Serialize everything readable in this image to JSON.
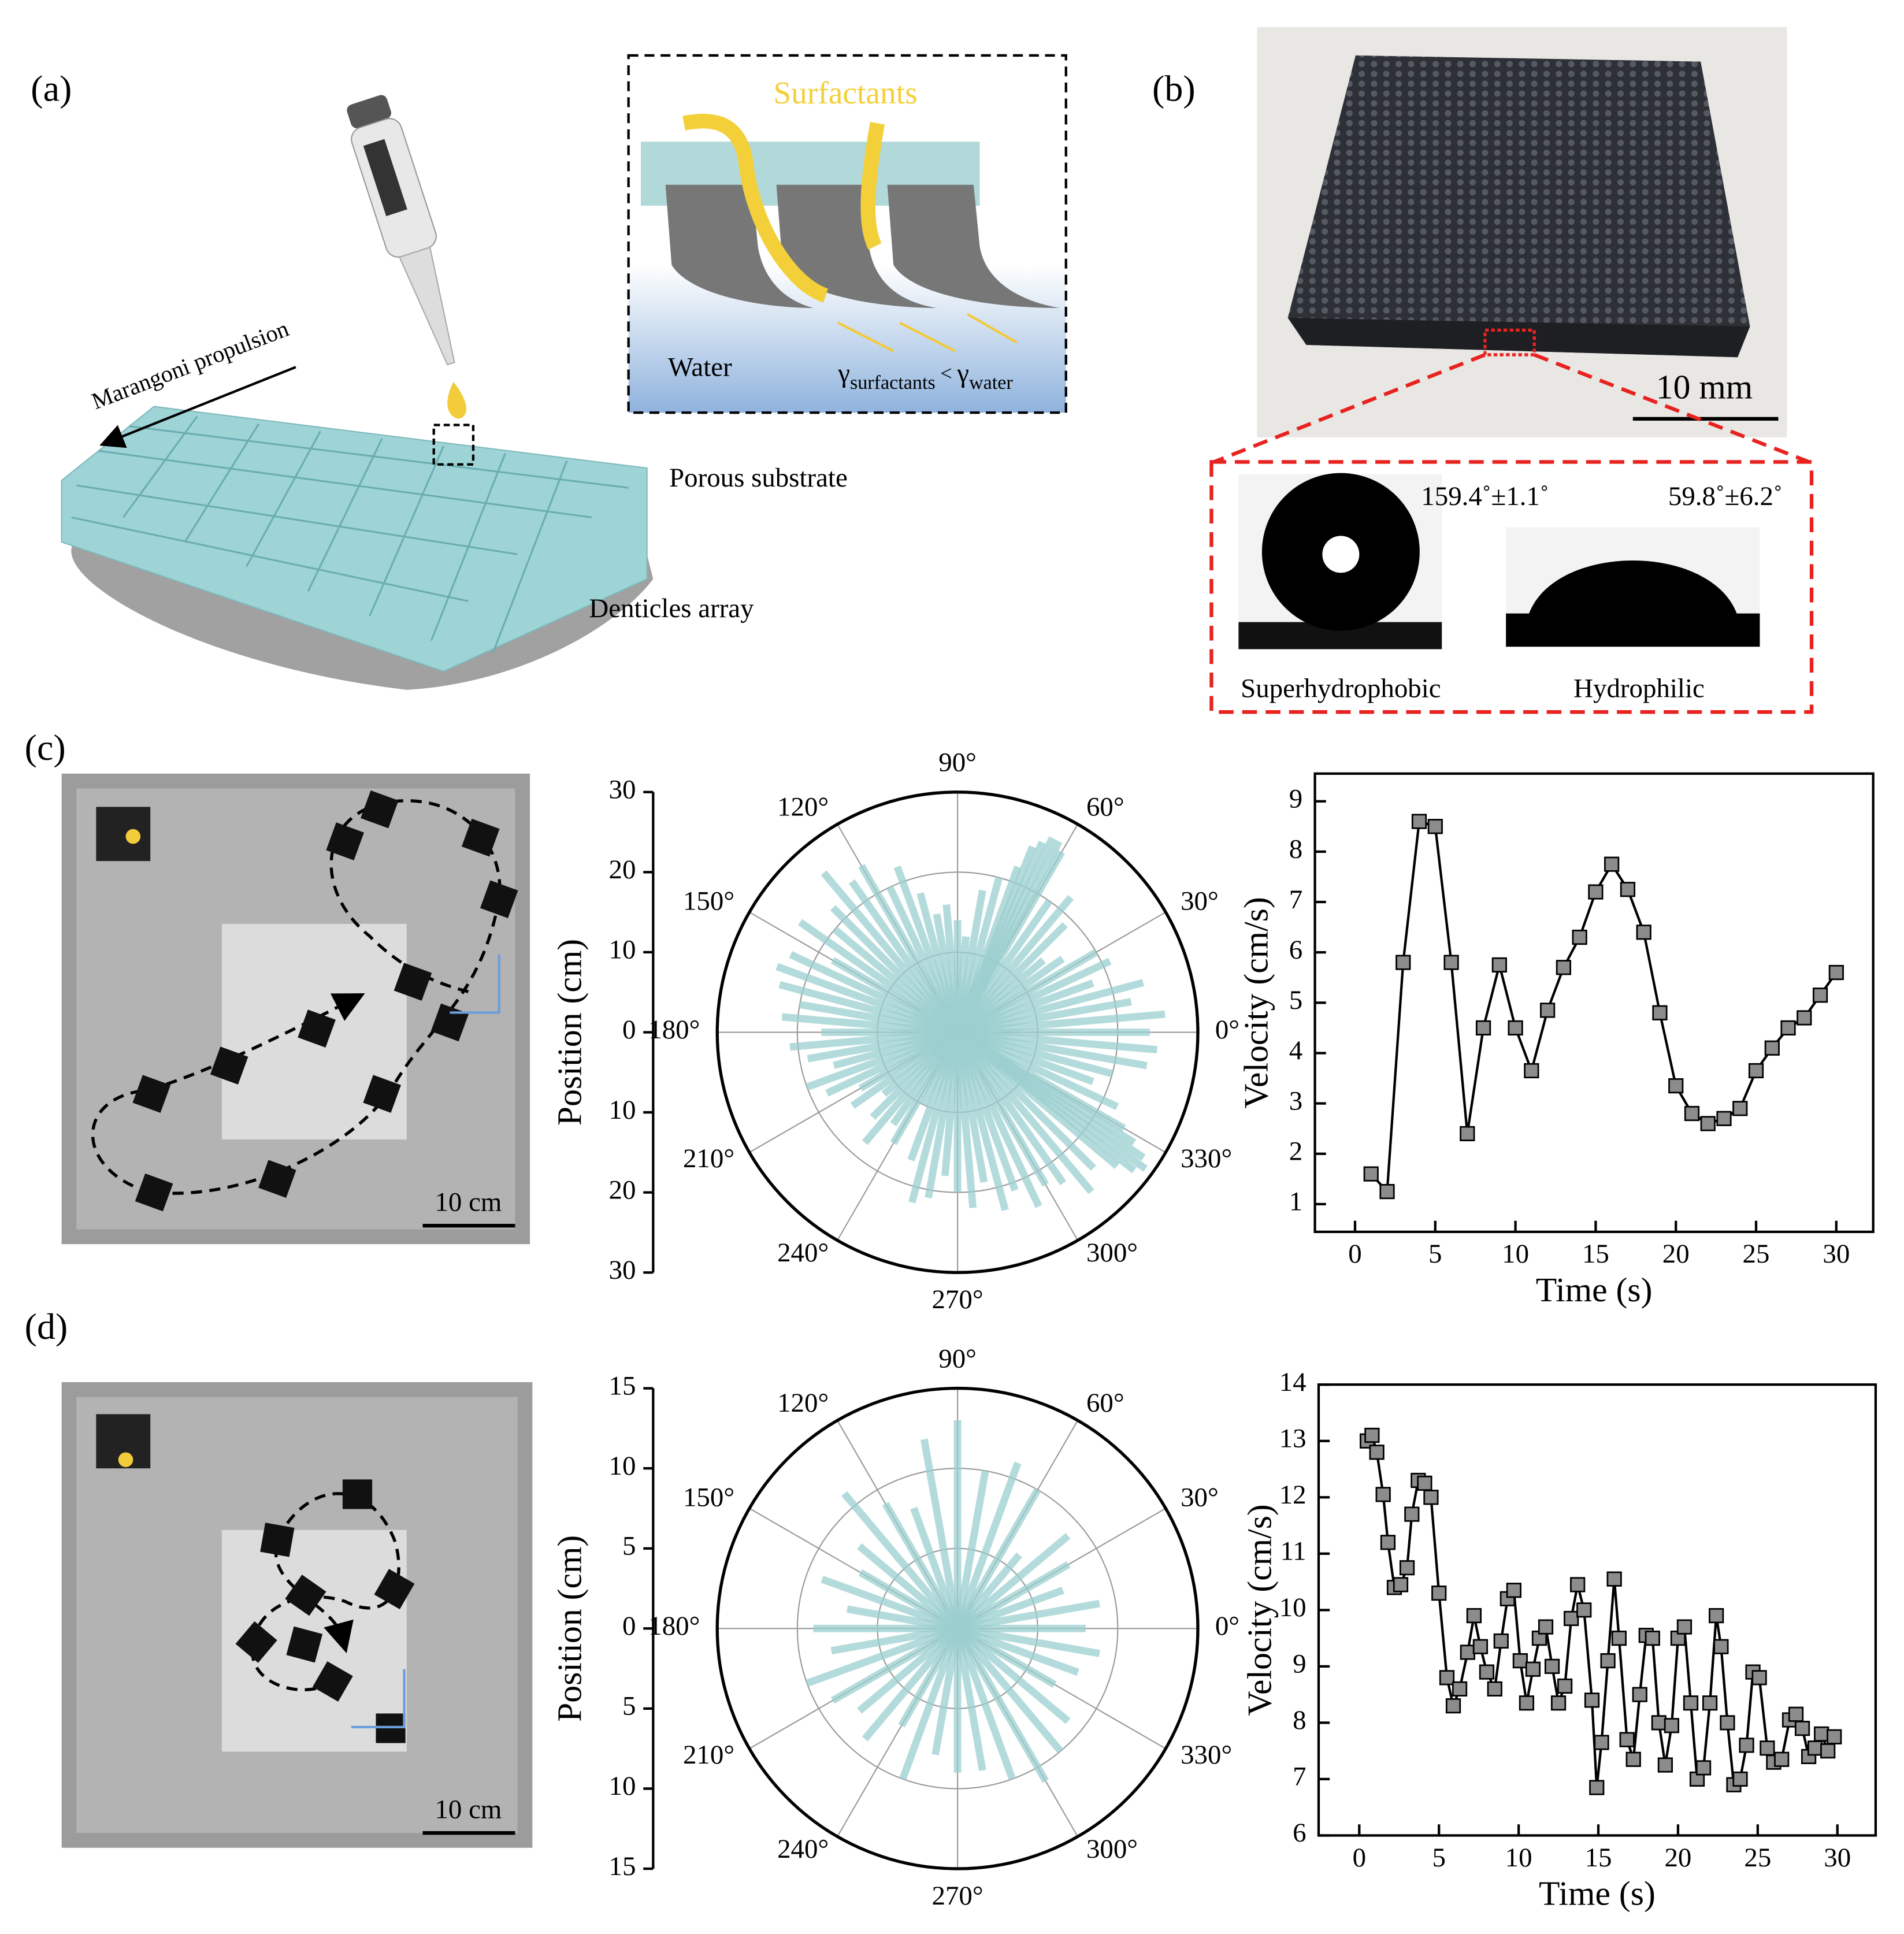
{
  "panels": {
    "a": {
      "label": "(a)",
      "surfactants": "Surfactants",
      "water": "Water",
      "gamma_1": "γ",
      "sub_1": "surfactants",
      "relation": "<",
      "gamma_2": "γ",
      "sub_2": "water",
      "marangoni": "Marangoni propulsion",
      "porous": "Porous substrate",
      "denticles": "Denticles array"
    },
    "b": {
      "label": "(b)",
      "scale_bar": "10 mm",
      "angle_1": "159.4˚±1.1˚",
      "angle_2": "59.8˚±6.2˚",
      "caption_1": "Superhydrophobic",
      "caption_2": "Hydrophilic"
    },
    "c": {
      "label": "(c)",
      "scale_bar": "10 cm"
    },
    "d": {
      "label": "(d)",
      "scale_bar": "10 cm"
    }
  },
  "chart_data": [
    {
      "type": "polar-bar",
      "y_label": "Position (cm)",
      "color": "#9ccfd0",
      "theta": [
        0,
        5,
        10,
        15,
        20,
        25,
        30,
        35,
        40,
        45,
        50,
        55,
        60,
        62,
        64,
        66,
        68,
        70,
        75,
        80,
        85,
        90,
        95,
        100,
        105,
        110,
        115,
        120,
        125,
        130,
        135,
        140,
        145,
        150,
        155,
        160,
        165,
        170,
        175,
        180,
        185,
        190,
        195,
        200,
        205,
        210,
        215,
        220,
        225,
        230,
        235,
        240,
        245,
        250,
        255,
        260,
        265,
        270,
        275,
        280,
        285,
        290,
        295,
        300,
        305,
        310,
        315,
        320,
        322,
        324,
        326,
        328,
        330,
        335,
        340,
        345,
        350,
        355
      ],
      "values": [
        24,
        26,
        22,
        24,
        18,
        21,
        20,
        16,
        14,
        19,
        22,
        20,
        26,
        27,
        27,
        26,
        25,
        22,
        20,
        18,
        12,
        14,
        16,
        15,
        18,
        22,
        20,
        24,
        23,
        26,
        22,
        20,
        24,
        18,
        23,
        24,
        23,
        20,
        22,
        17,
        21,
        19,
        16,
        20,
        18,
        14,
        16,
        12,
        15,
        18,
        14,
        16,
        10,
        17,
        22,
        21,
        18,
        20,
        22,
        19,
        23,
        21,
        24,
        22,
        23,
        26,
        24,
        26,
        28,
        29,
        28,
        26,
        24,
        22,
        18,
        20,
        24,
        25
      ],
      "ylim": [
        -30,
        30
      ],
      "yticks": [
        30,
        20,
        10,
        0,
        {
          "value": -10,
          "label": "10"
        },
        {
          "value": -20,
          "label": "20"
        },
        {
          "value": -30,
          "label": "30"
        }
      ],
      "rticks": [
        10,
        20
      ],
      "thetaticks": [
        {
          "value": 0,
          "label": "0°"
        },
        {
          "value": 30,
          "label": "30°"
        },
        {
          "value": 60,
          "label": "60°"
        },
        {
          "value": 90,
          "label": "90°"
        },
        {
          "value": 120,
          "label": "120°"
        },
        {
          "value": 150,
          "label": "150°"
        },
        {
          "value": 180,
          "label": "180°"
        },
        {
          "value": 210,
          "label": "210°"
        },
        {
          "value": 240,
          "label": "240°"
        },
        {
          "value": 270,
          "label": "270°"
        },
        {
          "value": 300,
          "label": "300°"
        },
        {
          "value": 330,
          "label": "330°"
        }
      ]
    },
    {
      "type": "line",
      "x_label": "Time (s)",
      "y_label": "Velocity (cm/s)",
      "color": "#000000",
      "marker_color": "#8c8c8c",
      "x": [
        1,
        2,
        3,
        4,
        5,
        6,
        7,
        8,
        9,
        10,
        11,
        12,
        13,
        14,
        15,
        16,
        17,
        18,
        19,
        20,
        21,
        22,
        23,
        24,
        25,
        26,
        27,
        28,
        29,
        30
      ],
      "values": [
        1.6,
        1.25,
        5.8,
        8.6,
        8.5,
        5.8,
        2.4,
        4.5,
        5.75,
        4.5,
        3.65,
        4.85,
        5.7,
        6.3,
        7.2,
        7.75,
        7.25,
        6.4,
        4.8,
        3.35,
        2.8,
        2.6,
        2.7,
        2.9,
        3.65,
        4.1,
        4.5,
        4.7,
        5.15,
        5.6
      ],
      "xlim": [
        -2.5,
        32.3
      ],
      "ylim": [
        0.45,
        9.55
      ],
      "xticks": [
        0,
        5,
        10,
        15,
        20,
        25,
        30
      ],
      "yticks": [
        1,
        2,
        3,
        4,
        5,
        6,
        7,
        8,
        9
      ]
    },
    {
      "type": "polar-bar",
      "y_label": "Position (cm)",
      "color": "#9ccfd0",
      "theta": [
        0,
        10,
        20,
        30,
        40,
        50,
        60,
        70,
        80,
        90,
        100,
        110,
        120,
        130,
        140,
        150,
        160,
        170,
        180,
        190,
        200,
        210,
        220,
        230,
        240,
        250,
        260,
        270,
        280,
        290,
        300,
        310,
        320,
        330,
        340,
        350
      ],
      "values": [
        8,
        9,
        7,
        8,
        9,
        6,
        10,
        11,
        10,
        13,
        12,
        8,
        9,
        11,
        8,
        7,
        9,
        7,
        9,
        8,
        10,
        9,
        8,
        9,
        7,
        10,
        8,
        9,
        9,
        10,
        11,
        10,
        9,
        7,
        8,
        9
      ],
      "ylim": [
        -15,
        15
      ],
      "yticks": [
        15,
        10,
        5,
        0,
        {
          "value": -5,
          "label": "5"
        },
        {
          "value": -10,
          "label": "10"
        },
        {
          "value": -15,
          "label": "15"
        }
      ],
      "rticks": [
        5,
        10
      ],
      "thetaticks": [
        {
          "value": 0,
          "label": "0°"
        },
        {
          "value": 30,
          "label": "30°"
        },
        {
          "value": 60,
          "label": "60°"
        },
        {
          "value": 90,
          "label": "90°"
        },
        {
          "value": 120,
          "label": "120°"
        },
        {
          "value": 150,
          "label": "150°"
        },
        {
          "value": 180,
          "label": "180°"
        },
        {
          "value": 210,
          "label": "210°"
        },
        {
          "value": 240,
          "label": "240°"
        },
        {
          "value": 270,
          "label": "270°"
        },
        {
          "value": 300,
          "label": "300°"
        },
        {
          "value": 330,
          "label": "330°"
        }
      ]
    },
    {
      "type": "line",
      "x_label": "Time (s)",
      "y_label": "Velocity (cm/s)",
      "color": "#000000",
      "marker_color": "#8c8c8c",
      "x": [
        0.5,
        0.8,
        1.1,
        1.5,
        1.8,
        2.2,
        2.6,
        3,
        3.3,
        3.7,
        4.1,
        4.5,
        5,
        5.5,
        5.9,
        6.3,
        6.8,
        7.2,
        7.6,
        8,
        8.5,
        8.9,
        9.3,
        9.7,
        10.1,
        10.5,
        10.9,
        11.3,
        11.7,
        12.1,
        12.5,
        12.9,
        13.3,
        13.7,
        14.1,
        14.6,
        14.9,
        15.2,
        15.6,
        16,
        16.3,
        16.8,
        17.2,
        17.6,
        18,
        18.4,
        18.8,
        19.2,
        19.6,
        20,
        20.4,
        20.8,
        21.2,
        21.6,
        22,
        22.4,
        22.7,
        23.1,
        23.5,
        23.9,
        24.3,
        24.7,
        25.1,
        25.6,
        26,
        26.5,
        27,
        27.4,
        27.8,
        28.2,
        28.6,
        29,
        29.4,
        29.8
      ],
      "values": [
        13,
        13.1,
        12.8,
        12.05,
        11.2,
        10.4,
        10.45,
        10.75,
        11.7,
        12.3,
        12.25,
        12,
        10.3,
        8.8,
        8.3,
        8.6,
        9.25,
        9.9,
        9.35,
        8.9,
        8.6,
        9.45,
        10.2,
        10.35,
        9.1,
        8.35,
        8.95,
        9.5,
        9.7,
        9,
        8.35,
        8.65,
        9.85,
        10.45,
        10,
        8.4,
        6.85,
        7.65,
        9.1,
        10.55,
        9.5,
        7.7,
        7.35,
        8.5,
        9.55,
        9.5,
        8,
        7.25,
        7.95,
        9.5,
        9.7,
        8.35,
        7,
        7.2,
        8.35,
        9.9,
        9.35,
        8,
        6.9,
        7,
        7.6,
        8.9,
        8.8,
        7.55,
        7.3,
        7.35,
        8.05,
        8.15,
        7.9,
        7.4,
        7.55,
        7.8,
        7.5,
        7.75
      ],
      "xlim": [
        -2.55,
        32.4
      ],
      "ylim": [
        6,
        14
      ],
      "xticks": [
        0,
        5,
        10,
        15,
        20,
        25,
        30
      ],
      "yticks": [
        6,
        7,
        8,
        9,
        10,
        11,
        12,
        13,
        14
      ]
    }
  ]
}
